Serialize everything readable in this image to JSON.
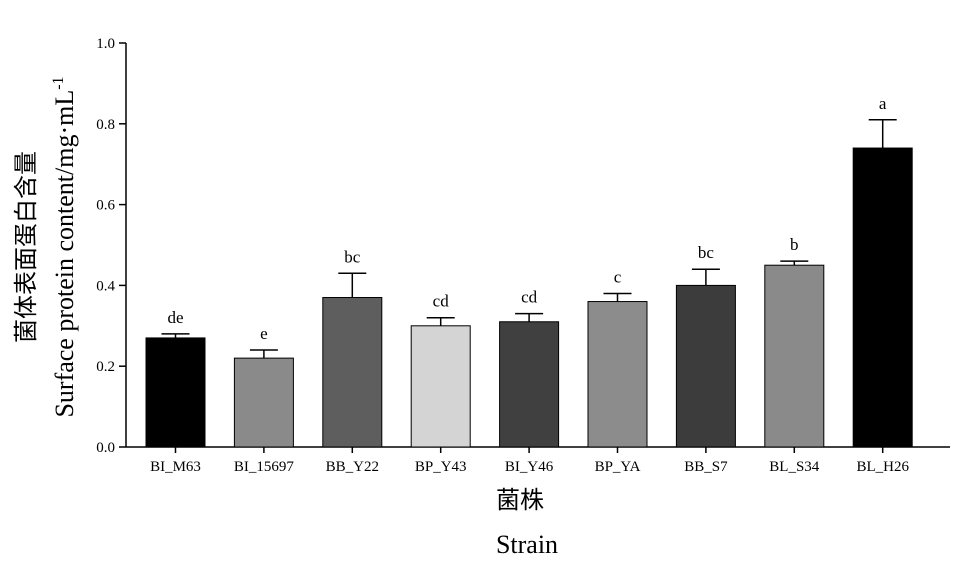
{
  "chart_data": {
    "type": "bar",
    "title": "",
    "xlabel_cn": "菌株",
    "xlabel": "Strain",
    "ylabel_cn": "菌体表面蛋白含量",
    "ylabel": "Surface protein content/mg·mL",
    "ylabel_sup": "-1",
    "ylim": [
      0,
      1.0
    ],
    "yticks": [
      "0.0",
      "0.2",
      "0.4",
      "0.6",
      "0.8",
      "1.0"
    ],
    "grid": false,
    "legend": "none",
    "categories": [
      "BI_M63",
      "BI_15697",
      "BB_Y22",
      "BP_Y43",
      "BI_Y46",
      "BP_YA",
      "BB_S7",
      "BL_S34",
      "BL_H26"
    ],
    "values": [
      0.27,
      0.22,
      0.37,
      0.3,
      0.31,
      0.36,
      0.4,
      0.45,
      0.74
    ],
    "errors": [
      0.01,
      0.02,
      0.06,
      0.02,
      0.02,
      0.02,
      0.04,
      0.01,
      0.07
    ],
    "significance": [
      "de",
      "e",
      "bc",
      "cd",
      "cd",
      "c",
      "bc",
      "b",
      "a"
    ],
    "colors": [
      "#000000",
      "#8a8a8a",
      "#5e5e5e",
      "#d4d4d4",
      "#404040",
      "#8c8c8c",
      "#3c3c3c",
      "#8a8a8a",
      "#000000"
    ]
  }
}
